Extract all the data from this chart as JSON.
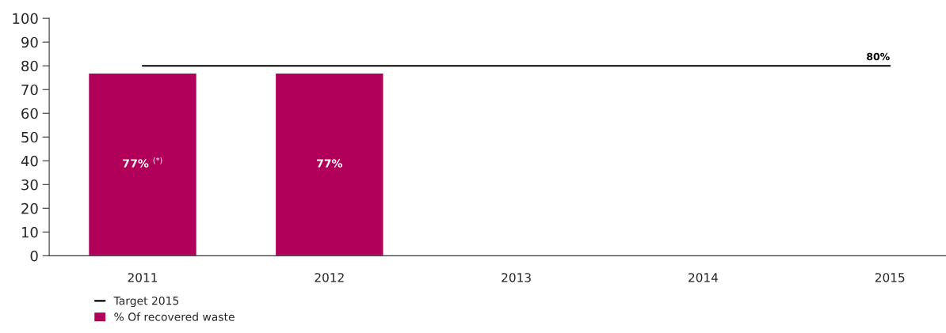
{
  "chart_data": {
    "type": "bar",
    "categories": [
      "2011",
      "2012",
      "2013",
      "2014",
      "2015"
    ],
    "series": [
      {
        "name": "% Of recovered waste",
        "color": "#b0005a",
        "values": [
          77,
          77,
          null,
          null,
          null
        ],
        "value_labels": [
          "77% $^{(*)}$",
          "77%",
          null,
          null,
          null
        ]
      },
      {
        "name": "Target 2015",
        "type": "line",
        "color": "#000000",
        "values": [
          80,
          80,
          80,
          80,
          80
        ],
        "value_labels": [
          null,
          null,
          null,
          null,
          "80%"
        ]
      }
    ],
    "ylim": [
      0,
      100
    ],
    "yticks": [
      0,
      10,
      20,
      30,
      40,
      50,
      60,
      70,
      80,
      90,
      100
    ],
    "grid": false,
    "legend": "bottom left"
  }
}
